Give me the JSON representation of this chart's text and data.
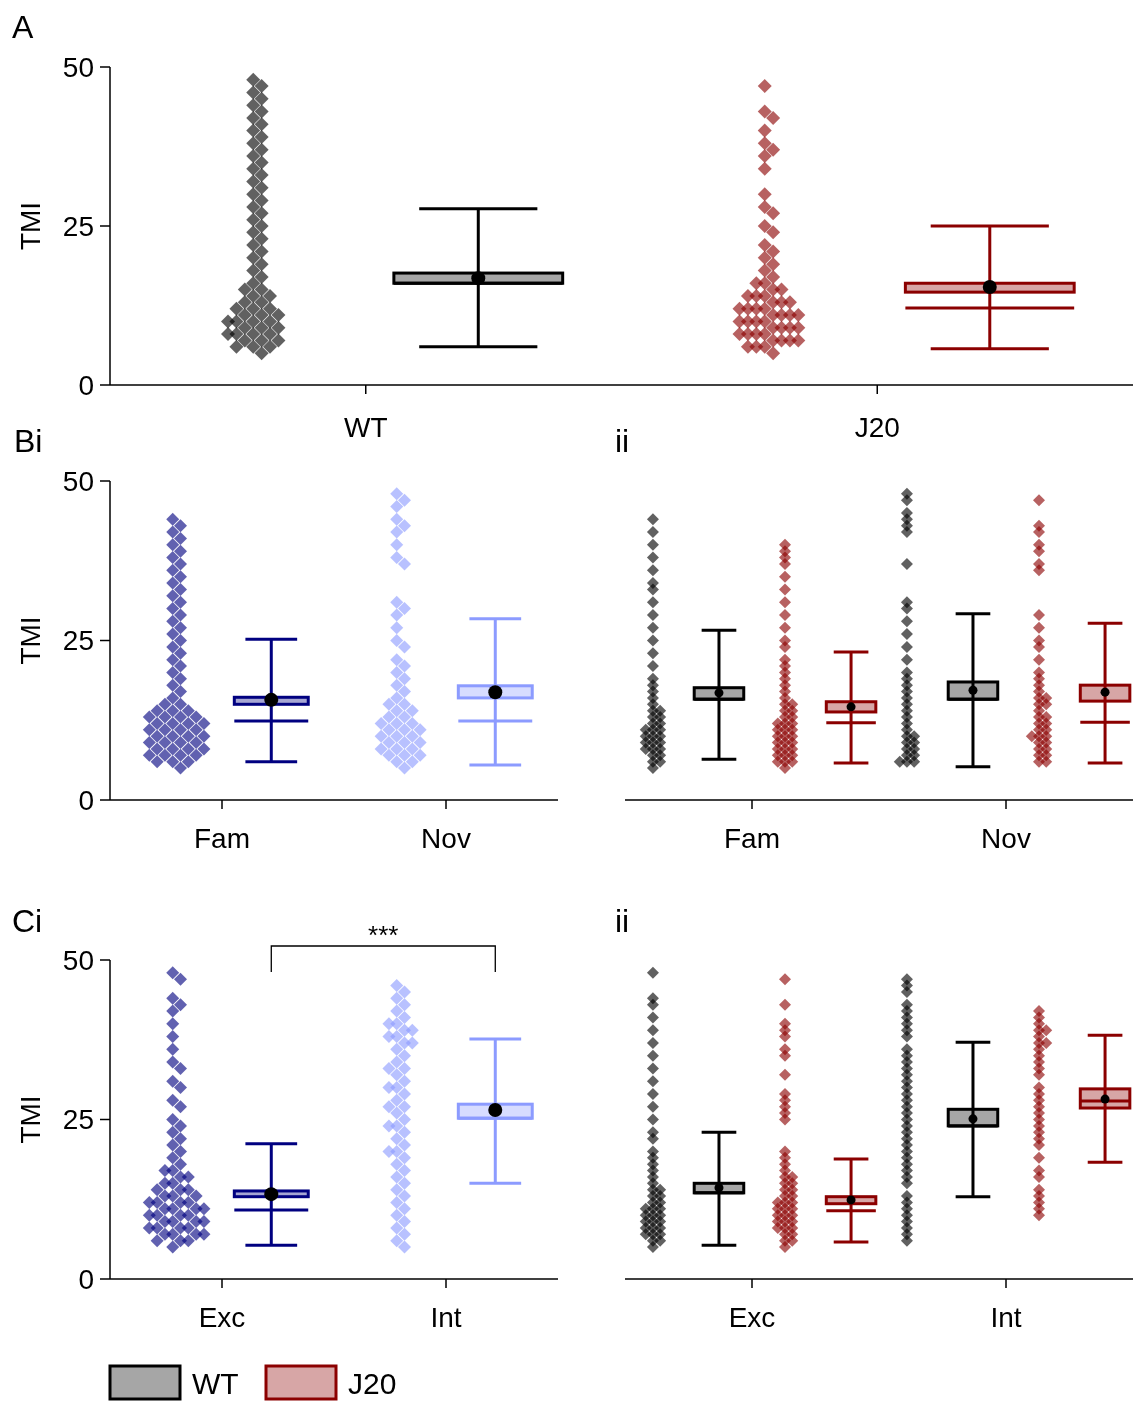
{
  "chart_data": [
    {
      "type": "box",
      "title": "A",
      "ylabel": "TMI",
      "categories": [
        "WT",
        "J20"
      ],
      "ylim": [
        0,
        50
      ],
      "yticks": [
        0,
        25,
        50
      ],
      "marker": "diamond",
      "series": [
        {
          "type": "scatter",
          "color": "#000000",
          "x": [
            "WT",
            "WT",
            "WT",
            "WT",
            "WT",
            "WT",
            "WT",
            "WT",
            "WT",
            "WT",
            "WT",
            "WT",
            "WT",
            "WT",
            "WT",
            "WT",
            "WT",
            "WT",
            "WT",
            "WT",
            "WT",
            "WT",
            "WT",
            "WT",
            "WT",
            "WT",
            "WT",
            "WT",
            "WT",
            "WT",
            "WT",
            "WT",
            "WT",
            "WT",
            "WT",
            "WT",
            "WT",
            "WT",
            "WT",
            "WT",
            "WT",
            "WT",
            "WT",
            "WT",
            "WT",
            "WT",
            "WT",
            "WT",
            "WT",
            "WT",
            "WT",
            "WT",
            "WT",
            "WT",
            "WT",
            "WT",
            "WT",
            "WT",
            "WT",
            "WT",
            "WT",
            "WT",
            "WT"
          ],
          "values": [
            48,
            47,
            46,
            45,
            44,
            43,
            42,
            41,
            40,
            39,
            38,
            37,
            36,
            35,
            34,
            33,
            32,
            31,
            30,
            29,
            28,
            27,
            26,
            25,
            24,
            23,
            22,
            21,
            20,
            19,
            18,
            17,
            16,
            15,
            15,
            14,
            14,
            13,
            13,
            12,
            12,
            12,
            11,
            11,
            11,
            10,
            10,
            10,
            10,
            9,
            9,
            9,
            8,
            8,
            8,
            8,
            7,
            7,
            7,
            6,
            6,
            6,
            5
          ]
        },
        {
          "color": "#000000",
          "boxes": [
            {
              "low": 6.0,
              "q1": 16.0,
              "median": 16.0,
              "q3": 17.6,
              "high": 27.7,
              "mean": 16.8
            },
            null
          ]
        },
        {
          "type": "scatter",
          "color": "#8b0000",
          "x": [
            "J20",
            "J20",
            "J20",
            "J20",
            "J20",
            "J20",
            "J20",
            "J20",
            "J20",
            "J20",
            "J20",
            "J20",
            "J20",
            "J20",
            "J20",
            "J20",
            "J20",
            "J20",
            "J20",
            "J20",
            "J20",
            "J20",
            "J20",
            "J20",
            "J20",
            "J20",
            "J20",
            "J20",
            "J20",
            "J20",
            "J20",
            "J20",
            "J20",
            "J20",
            "J20",
            "J20",
            "J20",
            "J20",
            "J20",
            "J20",
            "J20",
            "J20",
            "J20",
            "J20",
            "J20",
            "J20",
            "J20",
            "J20",
            "J20",
            "J20",
            "J20",
            "J20",
            "J20",
            "J20",
            "J20",
            "J20",
            "J20"
          ],
          "values": [
            47,
            43,
            42,
            40,
            38,
            37,
            36,
            34,
            30,
            28,
            27,
            25,
            24,
            22,
            21,
            20,
            19,
            18,
            17,
            16,
            16,
            15,
            15,
            14,
            14,
            14,
            13,
            13,
            13,
            12,
            12,
            12,
            12,
            11,
            11,
            11,
            11,
            10,
            10,
            10,
            10,
            9,
            9,
            9,
            9,
            8,
            8,
            8,
            8,
            7,
            7,
            7,
            7,
            6,
            6,
            6,
            5
          ]
        },
        {
          "color": "#8b0000",
          "boxes": [
            null,
            {
              "low": 5.7,
              "q1": 14.6,
              "median": 12.1,
              "q3": 16.0,
              "high": 25.0,
              "mean": 15.4
            }
          ]
        }
      ]
    },
    {
      "type": "box",
      "title": "Bi",
      "ylabel": "TMI",
      "categories": [
        "Fam",
        "Nov"
      ],
      "ylim": [
        0,
        50
      ],
      "yticks": [
        0,
        25,
        50
      ],
      "marker": "diamond",
      "series": [
        {
          "type": "scatter",
          "color": "#000080",
          "x": [
            "Fam",
            "Fam",
            "Fam",
            "Fam",
            "Fam",
            "Fam",
            "Fam",
            "Fam",
            "Fam",
            "Fam",
            "Fam",
            "Fam",
            "Fam",
            "Fam",
            "Fam",
            "Fam",
            "Fam",
            "Fam",
            "Fam",
            "Fam",
            "Fam",
            "Fam",
            "Fam",
            "Fam",
            "Fam",
            "Fam",
            "Fam",
            "Fam",
            "Fam",
            "Fam",
            "Fam",
            "Fam",
            "Fam",
            "Fam",
            "Fam",
            "Fam",
            "Fam",
            "Fam",
            "Fam",
            "Fam",
            "Fam",
            "Fam",
            "Fam",
            "Fam",
            "Fam",
            "Fam",
            "Fam",
            "Fam",
            "Fam",
            "Fam",
            "Fam",
            "Fam",
            "Fam",
            "Fam",
            "Fam",
            "Fam",
            "Fam",
            "Fam",
            "Fam",
            "Fam",
            "Fam",
            "Fam",
            "Fam",
            "Fam",
            "Fam",
            "Fam"
          ],
          "values": [
            44,
            43,
            42,
            41,
            40,
            39,
            38,
            37,
            36,
            35,
            34,
            33,
            32,
            31,
            30,
            29,
            28,
            27,
            26,
            25,
            24,
            23,
            22,
            21,
            20,
            19,
            18,
            17,
            16,
            15,
            15,
            14,
            14,
            14,
            13,
            13,
            13,
            13,
            12,
            12,
            12,
            12,
            11,
            11,
            11,
            11,
            10,
            10,
            10,
            10,
            9,
            9,
            9,
            9,
            8,
            8,
            8,
            8,
            7,
            7,
            7,
            7,
            6,
            6,
            6,
            5
          ]
        },
        {
          "color": "#000080",
          "boxes": [
            {
              "low": 6.0,
              "q1": 15.0,
              "median": 12.4,
              "q3": 16.1,
              "high": 25.2,
              "mean": 15.7
            },
            null
          ]
        },
        {
          "type": "scatter",
          "color": "#8c9bff",
          "x": [
            "Nov",
            "Nov",
            "Nov",
            "Nov",
            "Nov",
            "Nov",
            "Nov",
            "Nov",
            "Nov",
            "Nov",
            "Nov",
            "Nov",
            "Nov",
            "Nov",
            "Nov",
            "Nov",
            "Nov",
            "Nov",
            "Nov",
            "Nov",
            "Nov",
            "Nov",
            "Nov",
            "Nov",
            "Nov",
            "Nov",
            "Nov",
            "Nov",
            "Nov",
            "Nov",
            "Nov",
            "Nov",
            "Nov",
            "Nov",
            "Nov",
            "Nov",
            "Nov",
            "Nov",
            "Nov",
            "Nov",
            "Nov",
            "Nov",
            "Nov",
            "Nov",
            "Nov",
            "Nov",
            "Nov",
            "Nov",
            "Nov"
          ],
          "values": [
            48,
            47,
            46,
            44,
            43,
            42,
            40,
            38,
            37,
            31,
            30,
            29,
            27,
            25,
            24,
            22,
            21,
            20,
            19,
            18,
            17,
            16,
            15,
            15,
            14,
            14,
            13,
            13,
            12,
            12,
            12,
            11,
            11,
            11,
            10,
            10,
            10,
            9,
            9,
            9,
            8,
            8,
            8,
            7,
            7,
            7,
            6,
            6,
            5
          ]
        },
        {
          "color": "#8c9bff",
          "boxes": [
            null,
            {
              "low": 5.5,
              "q1": 16.0,
              "median": 12.4,
              "q3": 17.9,
              "high": 28.4,
              "mean": 16.9
            }
          ]
        }
      ]
    },
    {
      "type": "box",
      "title": "ii",
      "categories": [
        "Fam",
        "Nov"
      ],
      "ylim": [
        0,
        50
      ],
      "tick_labels": "x",
      "marker": "diamond",
      "series": [
        {
          "type": "scatter",
          "color": "#000000",
          "x": [
            "Fam",
            "Fam",
            "Fam",
            "Fam",
            "Fam",
            "Fam",
            "Fam",
            "Fam",
            "Fam",
            "Fam",
            "Fam",
            "Fam",
            "Fam",
            "Fam",
            "Fam",
            "Fam",
            "Fam",
            "Fam",
            "Fam",
            "Fam",
            "Fam",
            "Fam",
            "Fam",
            "Fam",
            "Fam",
            "Fam",
            "Fam",
            "Fam",
            "Fam",
            "Fam",
            "Fam",
            "Fam",
            "Fam",
            "Fam",
            "Fam",
            "Fam",
            "Fam",
            "Fam",
            "Fam",
            "Fam",
            "Fam",
            "Nov",
            "Nov",
            "Nov",
            "Nov",
            "Nov",
            "Nov",
            "Nov",
            "Nov",
            "Nov",
            "Nov",
            "Nov",
            "Nov",
            "Nov",
            "Nov",
            "Nov",
            "Nov",
            "Nov",
            "Nov",
            "Nov",
            "Nov",
            "Nov",
            "Nov",
            "Nov",
            "Nov",
            "Nov",
            "Nov",
            "Nov",
            "Nov",
            "Nov",
            "Nov",
            "Nov",
            "Nov",
            "Nov",
            "Nov"
          ],
          "values": [
            44,
            42,
            40,
            38,
            36,
            34,
            33,
            31,
            29,
            27,
            25,
            23,
            21,
            19,
            18,
            17,
            16,
            15,
            14,
            14,
            13,
            13,
            12,
            12,
            11,
            11,
            11,
            10,
            10,
            10,
            9,
            9,
            9,
            8,
            8,
            8,
            7,
            7,
            6,
            6,
            5,
            48,
            47,
            45,
            44,
            43,
            42,
            37,
            31,
            30,
            28,
            26,
            24,
            22,
            20,
            19,
            18,
            17,
            16,
            15,
            14,
            13,
            12,
            11,
            10,
            10,
            9,
            9,
            8,
            8,
            7,
            7,
            6,
            6,
            6
          ]
        },
        {
          "color": "#000000",
          "boxes": [
            {
              "low": 6.4,
              "q1": 15.8,
              "median": 15.8,
              "q3": 17.6,
              "high": 26.6,
              "mean": 16.8
            },
            {
              "low": 5.2,
              "q1": 15.8,
              "median": 15.8,
              "q3": 18.5,
              "high": 29.2,
              "mean": 17.2
            }
          ]
        },
        {
          "type": "scatter",
          "color": "#8b0000",
          "x": [
            "Fam",
            "Fam",
            "Fam",
            "Fam",
            "Fam",
            "Fam",
            "Fam",
            "Fam",
            "Fam",
            "Fam",
            "Fam",
            "Fam",
            "Fam",
            "Fam",
            "Fam",
            "Fam",
            "Fam",
            "Fam",
            "Fam",
            "Fam",
            "Fam",
            "Fam",
            "Fam",
            "Fam",
            "Fam",
            "Fam",
            "Fam",
            "Fam",
            "Fam",
            "Fam",
            "Fam",
            "Fam",
            "Fam",
            "Fam",
            "Fam",
            "Fam",
            "Fam",
            "Fam",
            "Fam",
            "Fam",
            "Fam",
            "Fam",
            "Fam",
            "Fam",
            "Fam",
            "Fam",
            "Nov",
            "Nov",
            "Nov",
            "Nov",
            "Nov",
            "Nov",
            "Nov",
            "Nov",
            "Nov",
            "Nov",
            "Nov",
            "Nov",
            "Nov",
            "Nov",
            "Nov",
            "Nov",
            "Nov",
            "Nov",
            "Nov",
            "Nov",
            "Nov",
            "Nov",
            "Nov",
            "Nov",
            "Nov",
            "Nov",
            "Nov",
            "Nov",
            "Nov",
            "Nov",
            "Nov",
            "Nov",
            "Nov",
            "Nov",
            "Nov",
            "Nov",
            "Nov",
            "Nov"
          ],
          "values": [
            40,
            39,
            38,
            37,
            35,
            33,
            31,
            29,
            27,
            25,
            24,
            22,
            21,
            20,
            19,
            18,
            17,
            16,
            15,
            15,
            14,
            14,
            13,
            13,
            12,
            12,
            12,
            11,
            11,
            11,
            10,
            10,
            10,
            9,
            9,
            9,
            8,
            8,
            8,
            7,
            7,
            7,
            6,
            6,
            6,
            5,
            47,
            43,
            42,
            40,
            39,
            37,
            36,
            29,
            27,
            25,
            24,
            22,
            20,
            19,
            18,
            17,
            16,
            16,
            15,
            15,
            14,
            13,
            13,
            12,
            12,
            11,
            11,
            10,
            10,
            10,
            9,
            9,
            8,
            8,
            7,
            7,
            6,
            6
          ]
        },
        {
          "color": "#8b0000",
          "boxes": [
            {
              "low": 5.8,
              "q1": 13.8,
              "median": 12.1,
              "q3": 15.4,
              "high": 23.2,
              "mean": 14.6
            },
            {
              "low": 5.8,
              "q1": 15.5,
              "median": 12.2,
              "q3": 18.0,
              "high": 27.7,
              "mean": 16.9
            }
          ]
        }
      ]
    },
    {
      "type": "box",
      "title": "Ci",
      "ylabel": "TMI",
      "categories": [
        "Exc",
        "Int"
      ],
      "ylim": [
        0,
        50
      ],
      "yticks": [
        0,
        25,
        50
      ],
      "marker": "diamond",
      "annotations": [
        "***"
      ],
      "series": [
        {
          "type": "scatter",
          "color": "#000080",
          "x": [
            "Exc",
            "Exc",
            "Exc",
            "Exc",
            "Exc",
            "Exc",
            "Exc",
            "Exc",
            "Exc",
            "Exc",
            "Exc",
            "Exc",
            "Exc",
            "Exc",
            "Exc",
            "Exc",
            "Exc",
            "Exc",
            "Exc",
            "Exc",
            "Exc",
            "Exc",
            "Exc",
            "Exc",
            "Exc",
            "Exc",
            "Exc",
            "Exc",
            "Exc",
            "Exc",
            "Exc",
            "Exc",
            "Exc",
            "Exc",
            "Exc",
            "Exc",
            "Exc",
            "Exc",
            "Exc",
            "Exc",
            "Exc",
            "Exc",
            "Exc",
            "Exc",
            "Exc",
            "Exc",
            "Exc",
            "Exc",
            "Exc",
            "Exc",
            "Exc",
            "Exc",
            "Exc",
            "Exc",
            "Exc",
            "Exc",
            "Exc",
            "Exc",
            "Exc",
            "Exc",
            "Exc",
            "Exc"
          ],
          "values": [
            48,
            47,
            44,
            43,
            42,
            40,
            38,
            36,
            34,
            33,
            31,
            30,
            28,
            27,
            25,
            24,
            23,
            22,
            21,
            20,
            19,
            18,
            17,
            17,
            16,
            16,
            15,
            15,
            14,
            14,
            14,
            13,
            13,
            13,
            12,
            12,
            12,
            12,
            11,
            11,
            11,
            11,
            10,
            10,
            10,
            10,
            9,
            9,
            9,
            9,
            8,
            8,
            8,
            8,
            7,
            7,
            7,
            7,
            6,
            6,
            6,
            5
          ]
        },
        {
          "color": "#000080",
          "boxes": [
            {
              "low": 5.3,
              "q1": 12.9,
              "median": 10.8,
              "q3": 13.8,
              "high": 21.2,
              "mean": 13.3
            },
            null
          ]
        },
        {
          "type": "scatter",
          "color": "#8c9bff",
          "x": [
            "Int",
            "Int",
            "Int",
            "Int",
            "Int",
            "Int",
            "Int",
            "Int",
            "Int",
            "Int",
            "Int",
            "Int",
            "Int",
            "Int",
            "Int",
            "Int",
            "Int",
            "Int",
            "Int",
            "Int",
            "Int",
            "Int",
            "Int",
            "Int",
            "Int",
            "Int",
            "Int",
            "Int",
            "Int",
            "Int",
            "Int",
            "Int",
            "Int",
            "Int",
            "Int",
            "Int",
            "Int",
            "Int",
            "Int",
            "Int",
            "Int",
            "Int",
            "Int",
            "Int",
            "Int",
            "Int",
            "Int",
            "Int",
            "Int",
            "Int",
            "Int"
          ],
          "values": [
            46,
            45,
            44,
            43,
            42,
            41,
            40,
            40,
            39,
            39,
            38,
            38,
            37,
            37,
            36,
            35,
            34,
            33,
            33,
            32,
            31,
            30,
            30,
            29,
            28,
            27,
            27,
            26,
            25,
            24,
            24,
            23,
            22,
            21,
            20,
            20,
            19,
            18,
            17,
            16,
            15,
            14,
            13,
            12,
            11,
            10,
            9,
            8,
            7,
            6,
            5
          ]
        },
        {
          "color": "#8c9bff",
          "boxes": [
            null,
            {
              "low": 15.0,
              "q1": 25.2,
              "median": 25.2,
              "q3": 27.4,
              "high": 37.6,
              "mean": 26.5
            }
          ]
        }
      ]
    },
    {
      "type": "box",
      "title": "ii",
      "categories": [
        "Exc",
        "Int"
      ],
      "ylim": [
        0,
        50
      ],
      "tick_labels": "x",
      "marker": "diamond",
      "legend": "bottom",
      "series": [
        {
          "type": "scatter",
          "color": "#000000",
          "x": [
            "Exc",
            "Exc",
            "Exc",
            "Exc",
            "Exc",
            "Exc",
            "Exc",
            "Exc",
            "Exc",
            "Exc",
            "Exc",
            "Exc",
            "Exc",
            "Exc",
            "Exc",
            "Exc",
            "Exc",
            "Exc",
            "Exc",
            "Exc",
            "Exc",
            "Exc",
            "Exc",
            "Exc",
            "Exc",
            "Exc",
            "Exc",
            "Exc",
            "Exc",
            "Exc",
            "Exc",
            "Exc",
            "Exc",
            "Exc",
            "Exc",
            "Exc",
            "Exc",
            "Exc",
            "Exc",
            "Exc",
            "Exc",
            "Exc",
            "Exc",
            "Exc",
            "Int",
            "Int",
            "Int",
            "Int",
            "Int",
            "Int",
            "Int",
            "Int",
            "Int",
            "Int",
            "Int",
            "Int",
            "Int",
            "Int",
            "Int",
            "Int",
            "Int",
            "Int",
            "Int",
            "Int",
            "Int",
            "Int",
            "Int",
            "Int",
            "Int",
            "Int",
            "Int",
            "Int",
            "Int",
            "Int",
            "Int",
            "Int",
            "Int",
            "Int",
            "Int",
            "Int",
            "Int",
            "Int",
            "Int"
          ],
          "values": [
            48,
            44,
            43,
            41,
            39,
            37,
            35,
            33,
            31,
            29,
            27,
            25,
            23,
            22,
            20,
            19,
            18,
            17,
            16,
            15,
            14,
            14,
            13,
            13,
            12,
            12,
            11,
            11,
            11,
            10,
            10,
            10,
            9,
            9,
            9,
            8,
            8,
            8,
            7,
            7,
            7,
            6,
            6,
            5,
            47,
            46,
            45,
            43,
            42,
            41,
            40,
            39,
            38,
            36,
            35,
            34,
            33,
            32,
            31,
            30,
            29,
            28,
            27,
            26,
            25,
            24,
            23,
            22,
            21,
            20,
            19,
            18,
            17,
            16,
            15,
            13,
            12,
            11,
            10,
            9,
            8,
            7,
            6
          ]
        },
        {
          "name": "WT",
          "color": "#000000",
          "boxes": [
            {
              "low": 5.3,
              "q1": 13.5,
              "median": 13.5,
              "q3": 15.0,
              "high": 23.0,
              "mean": 14.3
            },
            {
              "low": 12.9,
              "q1": 24.0,
              "median": 24.0,
              "q3": 26.6,
              "high": 37.1,
              "mean": 25.1
            }
          ]
        },
        {
          "type": "scatter",
          "color": "#8b0000",
          "x": [
            "Exc",
            "Exc",
            "Exc",
            "Exc",
            "Exc",
            "Exc",
            "Exc",
            "Exc",
            "Exc",
            "Exc",
            "Exc",
            "Exc",
            "Exc",
            "Exc",
            "Exc",
            "Exc",
            "Exc",
            "Exc",
            "Exc",
            "Exc",
            "Exc",
            "Exc",
            "Exc",
            "Exc",
            "Exc",
            "Exc",
            "Exc",
            "Exc",
            "Exc",
            "Exc",
            "Exc",
            "Exc",
            "Exc",
            "Exc",
            "Exc",
            "Exc",
            "Exc",
            "Exc",
            "Exc",
            "Exc",
            "Exc",
            "Exc",
            "Exc",
            "Exc",
            "Exc",
            "Int",
            "Int",
            "Int",
            "Int",
            "Int",
            "Int",
            "Int",
            "Int",
            "Int",
            "Int",
            "Int",
            "Int",
            "Int",
            "Int",
            "Int",
            "Int",
            "Int",
            "Int",
            "Int",
            "Int",
            "Int",
            "Int",
            "Int",
            "Int",
            "Int",
            "Int",
            "Int",
            "Int",
            "Int",
            "Int",
            "Int"
          ],
          "values": [
            47,
            43,
            40,
            39,
            38,
            36,
            35,
            32,
            29,
            28,
            27,
            26,
            25,
            20,
            19,
            18,
            17,
            16,
            16,
            15,
            15,
            14,
            14,
            13,
            13,
            12,
            12,
            12,
            11,
            11,
            11,
            10,
            10,
            10,
            9,
            9,
            9,
            8,
            8,
            8,
            7,
            7,
            6,
            6,
            5,
            42,
            41,
            40,
            39,
            39,
            38,
            37,
            37,
            36,
            35,
            34,
            33,
            32,
            30,
            29,
            28,
            27,
            26,
            25,
            24,
            23,
            22,
            21,
            19,
            17,
            16,
            14,
            13,
            12,
            11,
            10
          ]
        },
        {
          "name": "J20",
          "color": "#8b0000",
          "boxes": [
            {
              "low": 5.8,
              "q1": 11.8,
              "median": 10.7,
              "q3": 12.9,
              "high": 18.8,
              "mean": 12.4
            },
            {
              "low": 18.3,
              "q1": 26.8,
              "median": 27.9,
              "q3": 29.8,
              "high": 38.2,
              "mean": 28.2
            }
          ]
        }
      ]
    }
  ]
}
